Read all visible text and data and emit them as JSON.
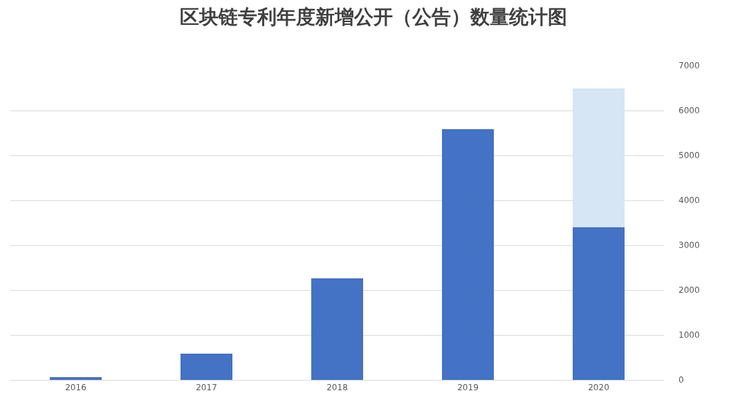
{
  "chart_data": {
    "type": "bar",
    "title": "区块链专利年度新增公开（公告）数量统计图",
    "categories": [
      "2016",
      "2017",
      "2018",
      "2019",
      "2020"
    ],
    "stacked": true,
    "series": [
      {
        "color": "#4472c4",
        "values": [
          60,
          580,
          2260,
          5580,
          3400
        ]
      },
      {
        "color": "#d6e6f5",
        "values": [
          null,
          null,
          null,
          null,
          3100
        ]
      }
    ],
    "ylim": [
      0,
      7000
    ],
    "yticks": [
      0,
      1000,
      2000,
      3000,
      4000,
      5000,
      6000,
      7000
    ],
    "grid": "y",
    "legend": false
  }
}
